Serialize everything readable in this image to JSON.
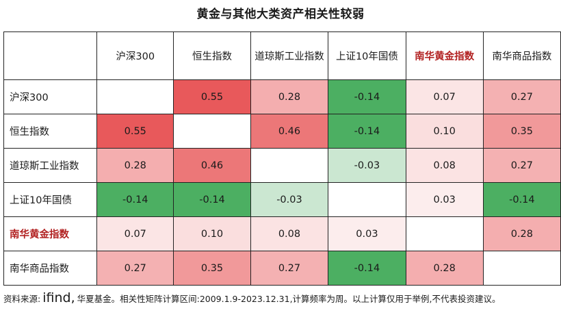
{
  "title": "黄金与其他大类资产相关性较弱",
  "chart_data": {
    "type": "heatmap",
    "rows": [
      "沪深300",
      "恒生指数",
      "道琼斯工业指数",
      "上证10年国债",
      "南华黄金指数",
      "南华商品指数"
    ],
    "columns": [
      "沪深300",
      "恒生指数",
      "道琼斯工业指数",
      "上证10年国债",
      "南华黄金指数",
      "南华商品指数"
    ],
    "highlight_label": "南华黄金指数",
    "highlight_color": "#b22222",
    "positive_color": "#e8595b",
    "negative_color": "#4caf62",
    "cells": [
      [
        "",
        "0.55",
        "0.28",
        "-0.14",
        "0.07",
        "0.27"
      ],
      [
        "0.55",
        "",
        "0.46",
        "-0.14",
        "0.10",
        "0.35"
      ],
      [
        "0.28",
        "0.46",
        "",
        "-0.03",
        "0.08",
        "0.27"
      ],
      [
        "-0.14",
        "-0.14",
        "-0.03",
        "",
        "0.03",
        "-0.14"
      ],
      [
        "0.07",
        "0.10",
        "0.08",
        "0.03",
        "",
        "0.28"
      ],
      [
        "0.27",
        "0.35",
        "0.27",
        "-0.14",
        "0.28",
        ""
      ]
    ]
  },
  "footer": {
    "prefix": "资料来源:",
    "brand": "ifind,",
    "suffix": "华夏基金。相关性矩阵计算区间:2009.1.9-2023.12.31,计算频率为周。以上计算仅用于举例,不代表投资建议。"
  }
}
